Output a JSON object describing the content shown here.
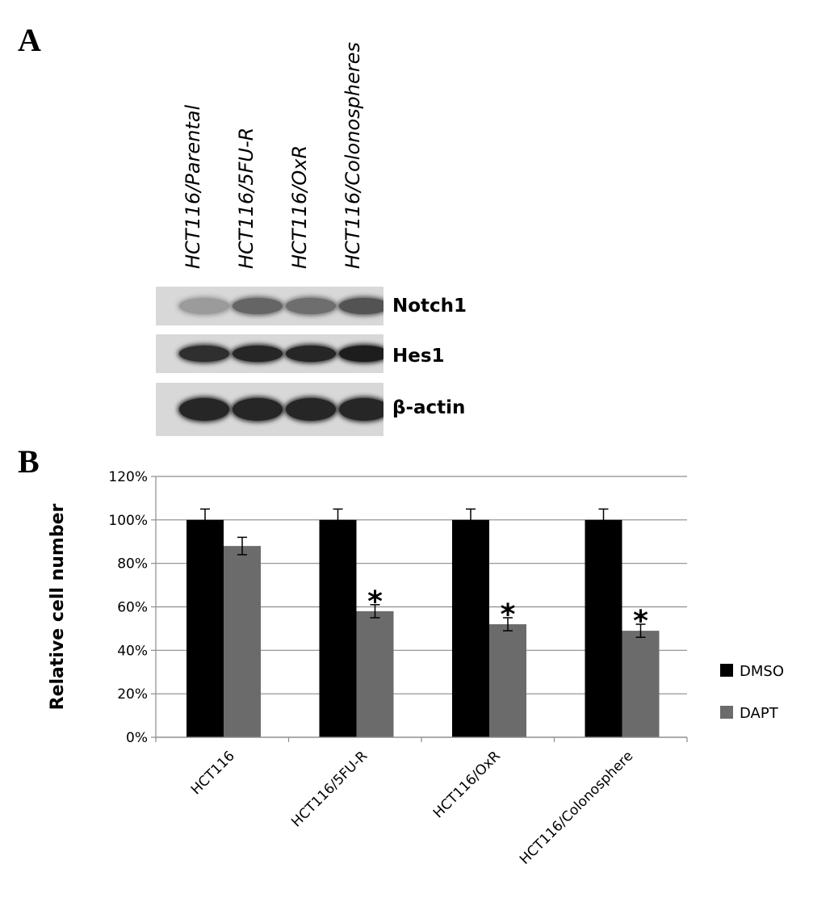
{
  "panel_a": {
    "letter": "A",
    "lanes": [
      "HCT116/Parental",
      "HCT116/5FU-R",
      "HCT116/OxR",
      "HCT116/Colonospheres"
    ],
    "blots": [
      {
        "label": "Notch1",
        "band_intensity": [
          0.25,
          0.55,
          0.5,
          0.65
        ]
      },
      {
        "label": "Hes1",
        "band_intensity": [
          0.85,
          0.9,
          0.9,
          0.95
        ]
      },
      {
        "label": "β-actin",
        "band_intensity": [
          0.9,
          0.9,
          0.9,
          0.9
        ]
      }
    ]
  },
  "panel_b": {
    "letter": "B"
  },
  "chart_data": {
    "type": "bar",
    "categories": [
      "HCT116",
      "HCT116/5FU-R",
      "HCT116/OxR",
      "HCT116/Colonosphere"
    ],
    "series": [
      {
        "name": "DMSO",
        "values": [
          100,
          100,
          100,
          100
        ],
        "errors": [
          5,
          5,
          5,
          5
        ],
        "color": "#000000"
      },
      {
        "name": "DAPT",
        "values": [
          88,
          58,
          52,
          49
        ],
        "errors": [
          4,
          3,
          3,
          3
        ],
        "color": "#6b6b6b"
      }
    ],
    "significance": [
      false,
      true,
      true,
      true
    ],
    "significance_marker": "*",
    "ylabel": "Relative cell number",
    "ylim": [
      0,
      120
    ],
    "yticks": [
      "0%",
      "20%",
      "40%",
      "60%",
      "80%",
      "100%",
      "120%"
    ],
    "grid": true,
    "legend_position": "right"
  }
}
